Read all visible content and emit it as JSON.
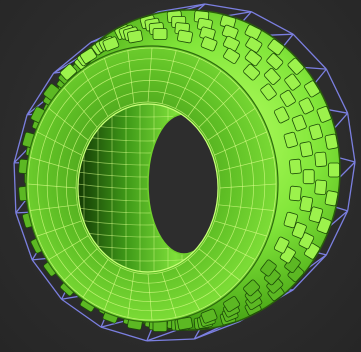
{
  "viewport": {
    "background": "#2b2b2b",
    "tire_color": "#7ee234",
    "tire_shadow": "#1c4a08",
    "wire_cage_color": "#7b7fe0",
    "mesh_line_color": "#d9ff8a"
  },
  "icons": [
    "tire-model-icon",
    "wireframe-cage-icon"
  ]
}
